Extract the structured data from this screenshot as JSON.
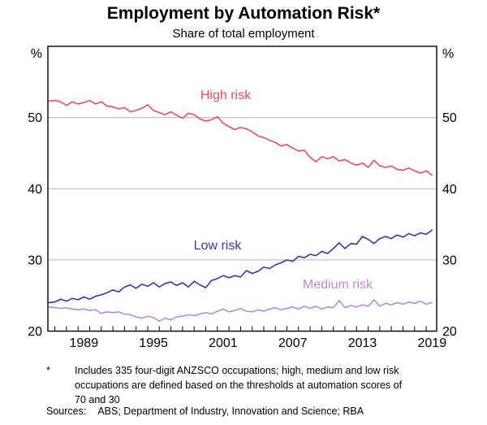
{
  "figure": {
    "footnote_marker": "*",
    "footnote_text": "Includes 335 four-digit ANZSCO occupations; high, medium and low risk occupations are defined based on the thresholds at automation scores of 70 and 30",
    "sources_label": "Sources:",
    "sources_text": "ABS; Department of Industry, Innovation and Science; RBA"
  },
  "chart_data": {
    "type": "line",
    "title": "Employment by Automation Risk*",
    "subtitle": "Share of total employment",
    "unit_label": "%",
    "ylim": [
      20,
      60
    ],
    "y_gridlines": [
      30,
      40,
      50
    ],
    "y_tick_labels": [
      20,
      30,
      40,
      50
    ],
    "grid": true,
    "grid_color": "#b3b3b3",
    "axis_color": "#000000",
    "legend_position": "inline-labels",
    "x_axis": {
      "start": 1986.4,
      "end": 2019.9,
      "tick_years_from": 1987,
      "tick_years_to": 2019,
      "label_years": [
        1989,
        1995,
        2001,
        2007,
        2013,
        2019
      ]
    },
    "x_start": 1986.5,
    "x_step": 0.5,
    "series": [
      {
        "name": "High risk",
        "color": "#e84d57",
        "values": [
          52.3,
          52.4,
          52.2,
          51.7,
          52.2,
          51.9,
          52.1,
          52.4,
          51.9,
          52.2,
          51.6,
          51.5,
          51.2,
          51.4,
          50.8,
          51.0,
          51.3,
          51.8,
          51.0,
          50.7,
          50.4,
          50.8,
          50.3,
          49.9,
          50.6,
          50.4,
          49.8,
          49.5,
          49.7,
          50.1,
          49.2,
          48.7,
          48.3,
          48.6,
          48.4,
          48.0,
          47.4,
          47.2,
          46.8,
          46.5,
          46.0,
          46.2,
          45.7,
          45.3,
          45.4,
          44.4,
          43.8,
          44.5,
          44.2,
          44.5,
          43.9,
          44.1,
          43.6,
          43.3,
          43.6,
          43.0,
          44.0,
          43.2,
          43.0,
          43.2,
          42.7,
          42.6,
          42.9,
          42.5,
          42.2,
          42.5,
          41.9
        ]
      },
      {
        "name": "Low risk",
        "color": "#3038ae",
        "values": [
          24.0,
          24.1,
          24.5,
          24.2,
          24.6,
          24.4,
          24.8,
          24.5,
          24.9,
          25.1,
          25.4,
          25.8,
          25.5,
          26.2,
          26.5,
          26.0,
          26.6,
          26.3,
          26.8,
          26.2,
          26.7,
          26.9,
          26.4,
          26.8,
          26.2,
          27.0,
          26.5,
          26.1,
          27.1,
          27.4,
          27.8,
          27.5,
          27.8,
          27.6,
          28.5,
          28.1,
          28.4,
          29.0,
          28.8,
          29.3,
          29.6,
          30.0,
          29.8,
          30.5,
          30.3,
          30.8,
          30.6,
          31.2,
          30.9,
          31.6,
          32.4,
          31.6,
          32.3,
          32.2,
          33.3,
          32.9,
          32.3,
          33.0,
          33.3,
          33.0,
          33.5,
          33.2,
          33.7,
          33.4,
          33.8,
          33.6,
          34.2
        ]
      },
      {
        "name": "Medium risk",
        "color": "#b48cd9",
        "values": [
          23.4,
          23.3,
          23.2,
          23.3,
          23.1,
          23.0,
          23.1,
          22.9,
          23.0,
          22.5,
          22.7,
          22.6,
          22.7,
          22.4,
          22.3,
          22.0,
          21.8,
          22.1,
          21.9,
          21.4,
          21.8,
          21.6,
          22.0,
          22.1,
          22.3,
          22.2,
          22.4,
          22.6,
          22.4,
          22.8,
          23.1,
          22.7,
          22.9,
          23.2,
          22.8,
          22.7,
          23.0,
          22.8,
          23.1,
          23.3,
          23.0,
          23.2,
          23.4,
          23.1,
          23.5,
          23.2,
          23.5,
          23.1,
          23.4,
          23.3,
          24.3,
          23.3,
          23.6,
          23.4,
          23.7,
          23.5,
          24.4,
          23.5,
          23.9,
          23.7,
          24.0,
          23.8,
          24.1,
          23.9,
          24.2,
          23.8,
          24.0
        ]
      }
    ]
  }
}
